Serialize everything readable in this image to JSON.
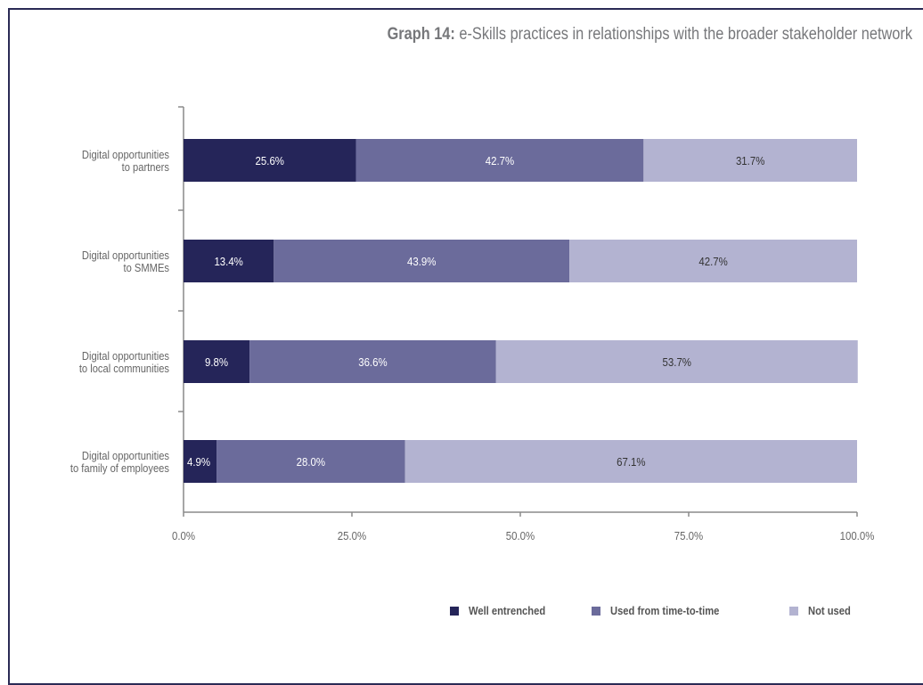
{
  "chart_data": {
    "type": "bar",
    "orientation": "horizontal",
    "stacked": true,
    "title_lead": "Graph 14:",
    "title_rest": " e-Skills practices in relationships with the broader stakeholder network",
    "categories": [
      [
        "Digital opportunities",
        "to partners"
      ],
      [
        "Digital opportunities",
        "to SMMEs"
      ],
      [
        "Digital opportunities",
        "to local communities"
      ],
      [
        "Digital opportunities",
        "to family of employees"
      ]
    ],
    "series": [
      {
        "name": "Well entrenched",
        "color": "#252559",
        "values": [
          25.6,
          13.4,
          9.8,
          4.9
        ],
        "labels": [
          "25.6%",
          "13.4%",
          "9.8%",
          "4.9%"
        ]
      },
      {
        "name": "Used from time-to-time",
        "color": "#6b6b9b",
        "values": [
          42.7,
          43.9,
          36.6,
          28.0
        ],
        "labels": [
          "42.7%",
          "43.9%",
          "36.6%",
          "28.0%"
        ]
      },
      {
        "name": "Not used",
        "color": "#b3b3d1",
        "values": [
          31.7,
          42.7,
          53.7,
          67.1
        ],
        "labels": [
          "31.7%",
          "42.7%",
          "53.7%",
          "67.1%"
        ]
      }
    ],
    "xlim": [
      0,
      100
    ],
    "xticks": [
      0,
      25,
      50,
      75,
      100
    ],
    "xtick_labels": [
      "0.0%",
      "25.0%",
      "50.0%",
      "75.0%",
      "100.0%"
    ],
    "grid": false,
    "legend_position": "bottom-right"
  }
}
